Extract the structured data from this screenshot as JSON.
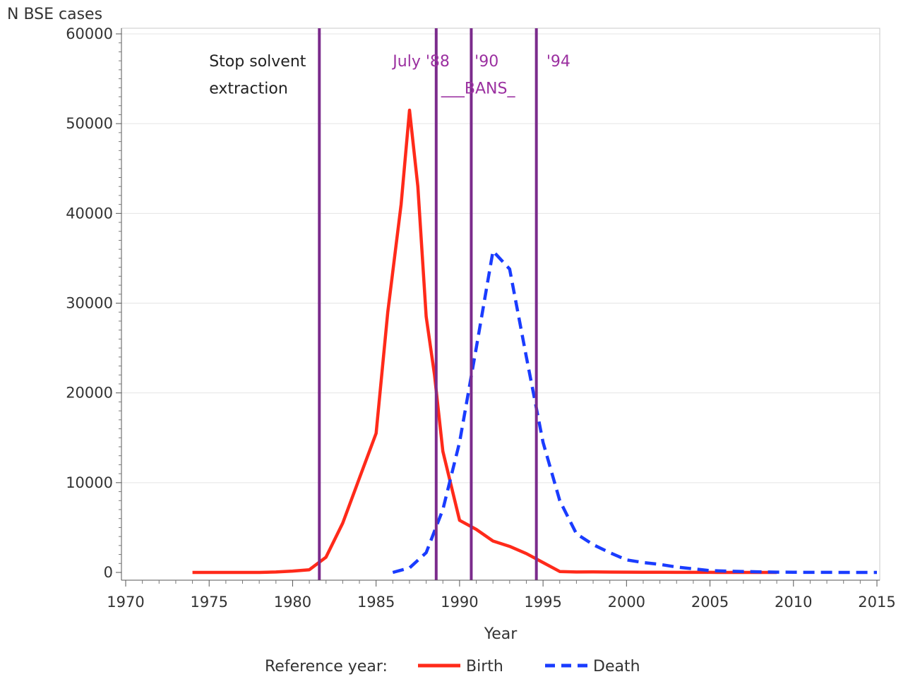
{
  "chart_data": {
    "type": "line",
    "ylabel": "N BSE cases",
    "xlabel": "Year",
    "xlim": [
      1970,
      2015
    ],
    "ylim": [
      0,
      60000
    ],
    "x_ticks": [
      "1970",
      "1975",
      "1980",
      "1985",
      "1990",
      "1995",
      "2000",
      "2005",
      "2010",
      "2015"
    ],
    "y_ticks": [
      "0",
      "10000",
      "20000",
      "30000",
      "40000",
      "50000",
      "60000"
    ],
    "grid": "horizontal",
    "legend": {
      "placement": "bottom",
      "title": "Reference year:",
      "entries": [
        "Birth",
        "Death"
      ]
    },
    "series": [
      {
        "name": "Birth",
        "color": "#ff2a1a",
        "style": "solid",
        "x": [
          1974,
          1975,
          1976,
          1977,
          1978,
          1979,
          1980,
          1981,
          1982,
          1983,
          1984,
          1985,
          1985.7,
          1986.5,
          1987,
          1987.5,
          1988,
          1988.5,
          1989,
          1990,
          1991,
          1992,
          1993,
          1994,
          1995,
          1996,
          1997,
          1998,
          1999,
          2000,
          2001,
          2002,
          2003,
          2004,
          2005,
          2006,
          2007,
          2008,
          2009
        ],
        "values": [
          0,
          0,
          0,
          0,
          0,
          50,
          150,
          300,
          1700,
          5500,
          10500,
          15500,
          29000,
          41000,
          51500,
          43000,
          28500,
          22000,
          13500,
          5800,
          4800,
          3500,
          2900,
          2100,
          1100,
          100,
          50,
          60,
          40,
          30,
          20,
          15,
          10,
          8,
          5,
          3,
          2,
          1,
          0
        ]
      },
      {
        "name": "Death",
        "color": "#1a3cff",
        "style": "dashed",
        "x": [
          1986,
          1987,
          1988,
          1989,
          1990,
          1991,
          1992,
          1993,
          1994,
          1995,
          1996,
          1997,
          1998,
          1999,
          2000,
          2001,
          2002,
          2003,
          2004,
          2005,
          2006,
          2007,
          2008,
          2009,
          2010,
          2011,
          2012,
          2013,
          2014,
          2015
        ],
        "values": [
          0,
          500,
          2200,
          7000,
          14500,
          25000,
          35800,
          33800,
          24000,
          14500,
          8000,
          4300,
          3100,
          2200,
          1400,
          1100,
          900,
          600,
          400,
          200,
          150,
          100,
          60,
          30,
          20,
          10,
          5,
          3,
          1,
          0
        ]
      }
    ],
    "reference_lines": [
      {
        "x": 1981.6,
        "color": "#7b2b8c"
      },
      {
        "x": 1988.6,
        "color": "#7b2b8c"
      },
      {
        "x": 1990.7,
        "color": "#7b2b8c"
      },
      {
        "x": 1994.6,
        "color": "#7b2b8c"
      }
    ],
    "annotations": [
      {
        "x": 1975,
        "y": 57000,
        "text": "Stop solvent",
        "color": "#222222"
      },
      {
        "x": 1975,
        "y": 54000,
        "text": "extraction",
        "color": "#222222"
      },
      {
        "x": 1986,
        "y": 57000,
        "text": "July '88",
        "color": "#9b30a0"
      },
      {
        "x": 1990.9,
        "y": 57000,
        "text": "'90",
        "color": "#9b30a0"
      },
      {
        "x": 1995.2,
        "y": 57000,
        "text": "'94",
        "color": "#9b30a0"
      },
      {
        "x": 1988.9,
        "y": 54000,
        "text": "___BANS_",
        "color": "#9b30a0"
      }
    ]
  }
}
